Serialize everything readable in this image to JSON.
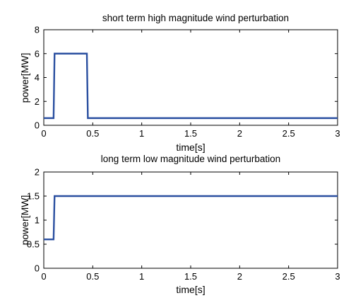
{
  "chart_data": [
    {
      "type": "line",
      "title": "short term high magnitude wind perturbation",
      "xlabel": "time[s]",
      "ylabel": "power[MW]",
      "xlim": [
        0,
        3
      ],
      "ylim": [
        0,
        8
      ],
      "xticks": [
        0,
        0.5,
        1,
        1.5,
        2,
        2.5,
        3
      ],
      "xtick_labels": [
        "0",
        "0.5",
        "1",
        "1.5",
        "2",
        "2.5",
        "3"
      ],
      "yticks": [
        0,
        2,
        4,
        6,
        8
      ],
      "ytick_labels": [
        "0",
        "2",
        "4",
        "6",
        "8"
      ],
      "grid": false,
      "series_color": "#2a4fa0",
      "series": [
        {
          "x": [
            0,
            0.1,
            0.11,
            0.44,
            0.45,
            3
          ],
          "y": [
            0.6,
            0.6,
            6,
            6,
            0.6,
            0.6
          ]
        }
      ]
    },
    {
      "type": "line",
      "title": "long term low magnitude wind perturbation",
      "xlabel": "time[s]",
      "ylabel": "power[MW]",
      "xlim": [
        0,
        3
      ],
      "ylim": [
        0,
        2
      ],
      "xticks": [
        0,
        0.5,
        1,
        1.5,
        2,
        2.5,
        3
      ],
      "xtick_labels": [
        "0",
        "0.5",
        "1",
        "1.5",
        "2",
        "2.5",
        "3"
      ],
      "yticks": [
        0,
        0.5,
        1,
        1.5,
        2
      ],
      "ytick_labels": [
        "0",
        "0.5",
        "1",
        "1.5",
        "2"
      ],
      "grid": false,
      "series_color": "#2a4fa0",
      "series": [
        {
          "x": [
            0,
            0.1,
            0.11,
            3
          ],
          "y": [
            0.6,
            0.6,
            1.5,
            1.5
          ]
        }
      ]
    }
  ]
}
